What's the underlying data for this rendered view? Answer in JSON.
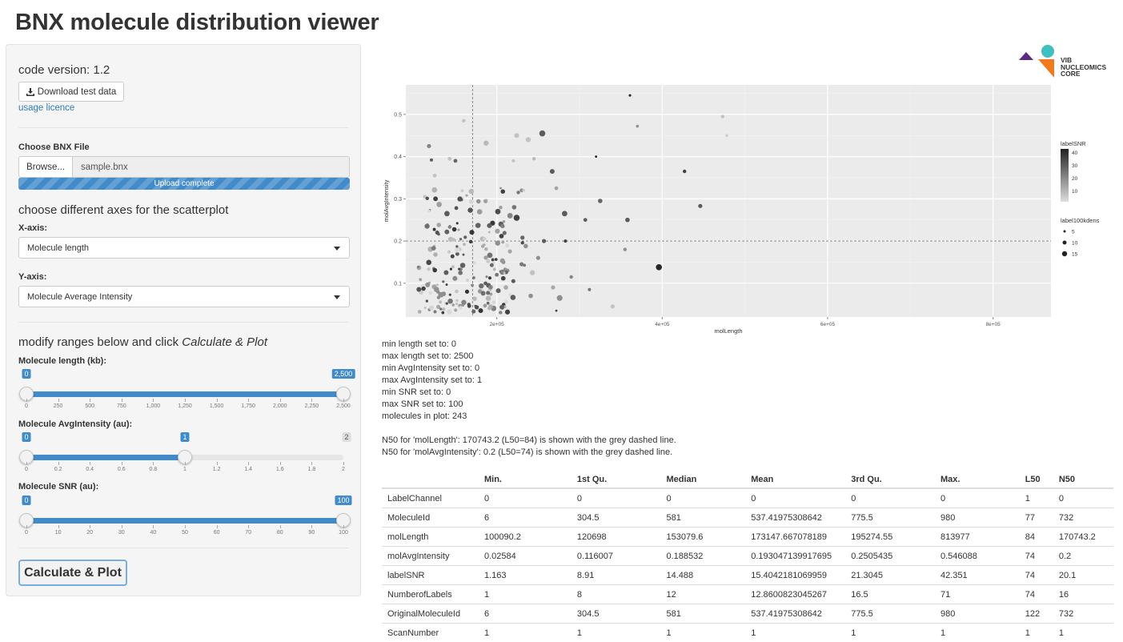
{
  "app_title": "BNX molecule distribution viewer",
  "sidebar": {
    "code_version": "code version: 1.2",
    "download_button": "Download test data",
    "usage_licence": "usage licence",
    "file_label": "Choose BNX File",
    "browse_button": "Browse...",
    "file_name": "sample.bnx",
    "upload_status": "Upload complete",
    "axes_heading": "choose different axes for the scatterplot",
    "x_axis_label": "X-axis:",
    "x_axis_value": "Molecule length",
    "y_axis_label": "Y-axis:",
    "y_axis_value": "Molecule Average Intensity",
    "ranges_heading_pre": "modify ranges below and click ",
    "ranges_heading_em": "Calculate & Plot",
    "sliders": [
      {
        "label": "Molecule length (kb):",
        "min": 0,
        "max": 2500,
        "low": 0,
        "high": 2500,
        "low_label": "0",
        "high_label": "2,500",
        "max_label": "",
        "ticks": [
          "0",
          "250",
          "500",
          "750",
          "1,000",
          "1,250",
          "1,500",
          "1,750",
          "2,000",
          "2,250",
          "2,500"
        ]
      },
      {
        "label": "Molecule AvgIntensity (au):",
        "min": 0,
        "max": 2,
        "low": 0,
        "high": 1,
        "low_label": "0",
        "high_label": "1",
        "max_label": "2",
        "ticks": [
          "0",
          "0.2",
          "0.4",
          "0.6",
          "0.8",
          "1",
          "1.2",
          "1.4",
          "1.6",
          "1.8",
          "2"
        ]
      },
      {
        "label": "Molecule SNR (au):",
        "min": 0,
        "max": 100,
        "low": 0,
        "high": 100,
        "low_label": "0",
        "high_label": "100",
        "max_label": "",
        "ticks": [
          "0",
          "10",
          "20",
          "30",
          "40",
          "50",
          "60",
          "70",
          "80",
          "90",
          "100"
        ]
      }
    ],
    "calculate_button": "Calculate & Plot"
  },
  "logo": {
    "line1": "VIB",
    "line2": "NUCLEOMICS",
    "line3": "CORE"
  },
  "chart_data": {
    "type": "scatter",
    "xlabel": "molLength",
    "ylabel": "molAvgIntensity",
    "xlim": [
      90000,
      870000
    ],
    "ylim": [
      0.02,
      0.57
    ],
    "x_ticks": [
      200000,
      400000,
      600000,
      800000
    ],
    "x_tick_labels": [
      "2e+05",
      "4e+05",
      "6e+05",
      "8e+05"
    ],
    "y_ticks": [
      0.1,
      0.2,
      0.3,
      0.4,
      0.5
    ],
    "y_tick_labels": [
      "0.1",
      "0.2",
      "0.3",
      "0.4",
      "0.5"
    ],
    "grid": true,
    "vline_x": 170743.2,
    "hline_y": 0.2,
    "legend_color": {
      "title": "labelSNR",
      "labels": [
        "40",
        "30",
        "20",
        "10"
      ]
    },
    "legend_size": {
      "title": "label100kdens",
      "labels": [
        "5",
        "10",
        "15"
      ]
    },
    "points": [
      [
        361000,
        0.545,
        40,
        3
      ],
      [
        370000,
        0.472,
        20,
        4
      ],
      [
        473000,
        0.495,
        10,
        6
      ],
      [
        478000,
        0.45,
        8,
        4
      ],
      [
        255000,
        0.455,
        30,
        14
      ],
      [
        320000,
        0.4,
        42,
        2
      ],
      [
        220000,
        0.39,
        10,
        5
      ],
      [
        245000,
        0.395,
        12,
        6
      ],
      [
        267000,
        0.365,
        30,
        10
      ],
      [
        427000,
        0.365,
        35,
        6
      ],
      [
        325000,
        0.295,
        28,
        9
      ],
      [
        446000,
        0.283,
        30,
        8
      ],
      [
        272000,
        0.325,
        16,
        7
      ],
      [
        282000,
        0.265,
        30,
        12
      ],
      [
        307000,
        0.25,
        30,
        7
      ],
      [
        358000,
        0.25,
        30,
        9
      ],
      [
        396000,
        0.138,
        40,
        14
      ],
      [
        355000,
        0.18,
        20,
        6
      ],
      [
        257000,
        0.2,
        30,
        8
      ],
      [
        283000,
        0.2,
        35,
        5
      ],
      [
        268000,
        0.09,
        15,
        8
      ],
      [
        276000,
        0.065,
        20,
        13
      ],
      [
        290000,
        0.115,
        22,
        6
      ],
      [
        340000,
        0.045,
        10,
        8
      ],
      [
        312000,
        0.085,
        25,
        5
      ],
      [
        272000,
        0.035,
        35,
        2
      ],
      [
        224000,
        0.45,
        10,
        10
      ],
      [
        238000,
        0.44,
        10,
        11
      ],
      [
        187000,
        0.432,
        12,
        11
      ],
      [
        160000,
        0.485,
        10,
        6
      ],
      [
        150000,
        0.39,
        28,
        7
      ],
      [
        143000,
        0.395,
        10,
        7
      ],
      [
        118000,
        0.425,
        22,
        8
      ],
      [
        121000,
        0.392,
        30,
        5
      ],
      [
        125000,
        0.355,
        10,
        7
      ],
      [
        113000,
        0.305,
        10,
        6
      ],
      [
        230000,
        0.32,
        20,
        7
      ],
      [
        226000,
        0.315,
        25,
        6
      ],
      [
        221000,
        0.28,
        25,
        9
      ],
      [
        224000,
        0.255,
        35,
        14
      ],
      [
        216000,
        0.26,
        22,
        12
      ],
      [
        205000,
        0.24,
        30,
        11
      ],
      [
        231000,
        0.208,
        28,
        8
      ],
      [
        235000,
        0.188,
        20,
        9
      ],
      [
        201000,
        0.195,
        20,
        11
      ],
      [
        208000,
        0.15,
        22,
        7
      ],
      [
        230000,
        0.145,
        24,
        8
      ],
      [
        250000,
        0.16,
        20,
        8
      ],
      [
        243000,
        0.125,
        10,
        11
      ],
      [
        220000,
        0.105,
        30,
        8
      ],
      [
        241000,
        0.07,
        20,
        9
      ],
      [
        211000,
        0.09,
        15,
        9
      ],
      [
        190000,
        0.095,
        30,
        10
      ],
      [
        200000,
        0.12,
        25,
        7
      ],
      [
        213000,
        0.13,
        20,
        7
      ]
    ]
  },
  "summary": {
    "lines": [
      "min length set to: 0",
      "max length set to: 2500",
      "min AvgIntensity set to: 0",
      "max AvgIntensity set to: 1",
      "min SNR set to: 0",
      "max SNR set to: 100",
      "molecules in plot: 243"
    ],
    "n50_lines": [
      "N50 for 'molLength': 170743.2 (L50=84) is shown with the grey dashed line.",
      "N50 for 'molAvgIntensity': 0.2 (L50=74) is shown with the grey dashed line."
    ]
  },
  "table": {
    "headers": [
      "",
      "Min.",
      "1st Qu.",
      "Median",
      "Mean",
      "3rd Qu.",
      "Max.",
      "L50",
      "N50"
    ],
    "rows": [
      [
        "LabelChannel",
        "0",
        "0",
        "0",
        "0",
        "0",
        "0",
        "1",
        "0"
      ],
      [
        "MoleculeId",
        "6",
        "304.5",
        "581",
        "537.41975308642",
        "775.5",
        "980",
        "77",
        "732"
      ],
      [
        "molLength",
        "100090.2",
        "120698",
        "153079.6",
        "173147.667078189",
        "195274.55",
        "813977",
        "84",
        "170743.2"
      ],
      [
        "molAvgIntensity",
        "0.02584",
        "0.116007",
        "0.188532",
        "0.193047139917695",
        "0.2505435",
        "0.546088",
        "74",
        "0.2"
      ],
      [
        "labelSNR",
        "1.163",
        "8.91",
        "14.488",
        "15.4042181069959",
        "21.3045",
        "42.351",
        "74",
        "20.1"
      ],
      [
        "NumberofLabels",
        "1",
        "8",
        "12",
        "12.8600823045267",
        "16.5",
        "71",
        "74",
        "16"
      ],
      [
        "OriginalMoleculeId",
        "6",
        "304.5",
        "581",
        "537.41975308642",
        "775.5",
        "980",
        "122",
        "732"
      ],
      [
        "ScanNumber",
        "1",
        "1",
        "1",
        "1",
        "1",
        "1",
        "1",
        "1"
      ]
    ]
  }
}
